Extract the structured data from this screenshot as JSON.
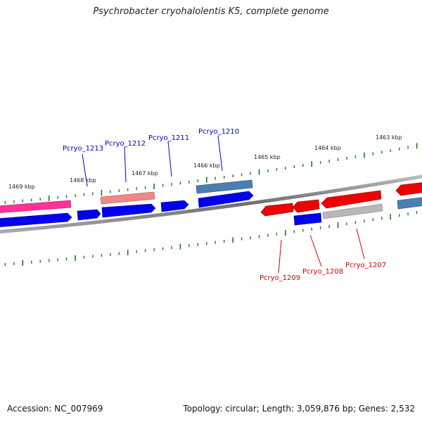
{
  "title": "Psychrobacter cryohalolentis K5, complete genome",
  "footer": {
    "accession": "Accession: NC_007969",
    "stats": "Topology: circular; Length: 3,059,876 bp; Genes: 2,532"
  },
  "kbp_labels": [
    "1469 kbp",
    "1468 kbp",
    "1467 kbp",
    "1466 kbp",
    "1465 kbp",
    "1464 kbp",
    "1463 kbp"
  ],
  "genes_top": [
    "Pcryo_1213",
    "Pcryo_1212",
    "Pcryo_1211",
    "Pcryo_1210"
  ],
  "genes_bottom": [
    "Pcryo_1209",
    "Pcryo_1208",
    "Pcryo_1207"
  ],
  "colors": {
    "forward_label": "#0000cc",
    "reverse_label": "#cc0000",
    "tick": "#1a7a1a",
    "backbone": "#808080",
    "blue": "#0000ee",
    "red": "#ee0000",
    "pink": "#ff3399",
    "salmon": "#ee8888",
    "steel": "#4a7fb0",
    "grey": "#b8b8b8"
  }
}
